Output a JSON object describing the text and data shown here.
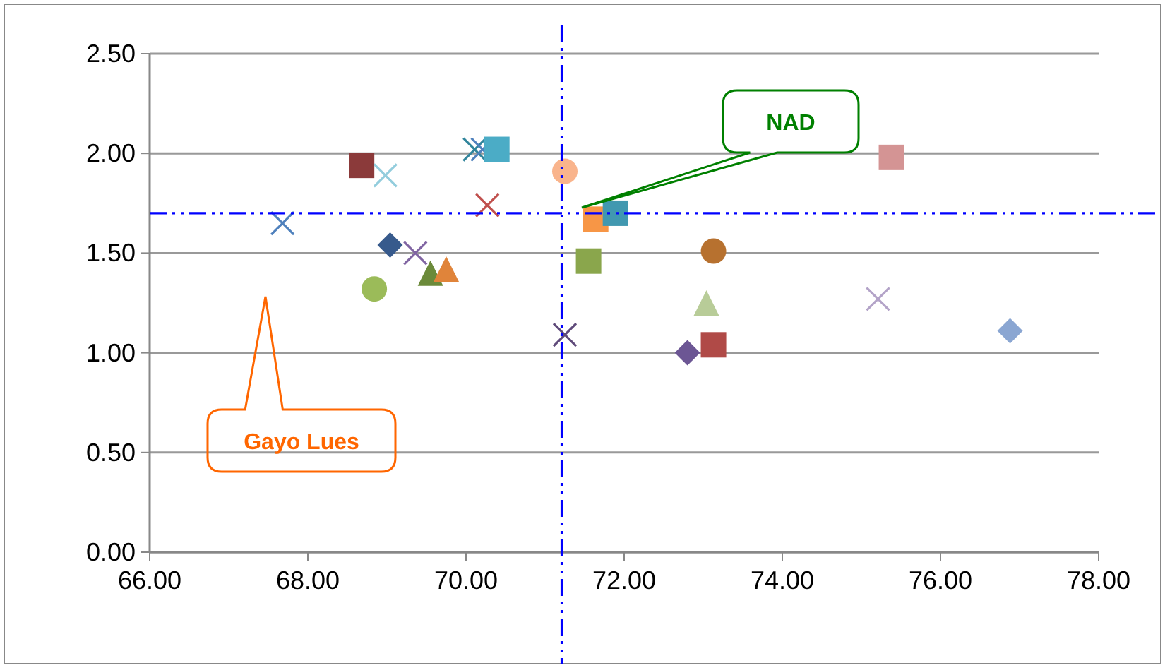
{
  "chart_data": {
    "type": "scatter",
    "xlim": [
      66,
      78
    ],
    "ylim": [
      0,
      2.5
    ],
    "xticks": [
      {
        "value": 66,
        "label": "66.00"
      },
      {
        "value": 68,
        "label": "68.00"
      },
      {
        "value": 70,
        "label": "70.00"
      },
      {
        "value": 72,
        "label": "72.00"
      },
      {
        "value": 74,
        "label": "74.00"
      },
      {
        "value": 76,
        "label": "76.00"
      },
      {
        "value": 78,
        "label": "78.00"
      }
    ],
    "yticks": [
      {
        "value": 0,
        "label": "0.00"
      },
      {
        "value": 0.5,
        "label": "0.50"
      },
      {
        "value": 1,
        "label": "1.00"
      },
      {
        "value": 1.5,
        "label": "1.50"
      },
      {
        "value": 2,
        "label": "2.00"
      },
      {
        "value": 2.5,
        "label": "2.50"
      }
    ],
    "grid": "y",
    "series": [
      {
        "color": "#4f81bd",
        "marker": "cross",
        "x": [
          67.68
        ],
        "values": [
          1.65
        ]
      },
      {
        "color": "#8b3a3a",
        "marker": "square",
        "x": [
          68.68
        ],
        "values": [
          1.94
        ]
      },
      {
        "color": "#93cddd",
        "marker": "cross",
        "x": [
          68.98
        ],
        "values": [
          1.89
        ]
      },
      {
        "color": "#375a8c",
        "marker": "diamond",
        "x": [
          69.04
        ],
        "values": [
          1.54
        ]
      },
      {
        "color": "#8064a2",
        "marker": "cross",
        "x": [
          69.36
        ],
        "values": [
          1.5
        ]
      },
      {
        "color": "#9bbb59",
        "marker": "circle",
        "x": [
          68.84
        ],
        "values": [
          1.32
        ]
      },
      {
        "color": "#6b8a3a",
        "marker": "triangle",
        "x": [
          69.55
        ],
        "values": [
          1.4
        ]
      },
      {
        "color": "#e0843a",
        "marker": "triangle",
        "x": [
          69.75
        ],
        "values": [
          1.42
        ]
      },
      {
        "color": "#31859c",
        "marker": "cross",
        "x": [
          70.11
        ],
        "values": [
          2.02
        ]
      },
      {
        "color": "#4f81bd",
        "marker": "cross",
        "x": [
          70.21
        ],
        "values": [
          2.02
        ]
      },
      {
        "color": "#4bacc6",
        "marker": "square",
        "x": [
          70.39
        ],
        "values": [
          2.02
        ]
      },
      {
        "color": "#c0504d",
        "marker": "cross",
        "x": [
          70.27
        ],
        "values": [
          1.74
        ]
      },
      {
        "color": "#f9b48c",
        "marker": "circle",
        "x": [
          71.25
        ],
        "values": [
          1.91
        ]
      },
      {
        "color": "#5f4a7a",
        "marker": "cross",
        "x": [
          71.25
        ],
        "values": [
          1.09
        ]
      },
      {
        "color": "#f79646",
        "marker": "square",
        "x": [
          71.64
        ],
        "values": [
          1.67
        ]
      },
      {
        "color": "#4198b0",
        "marker": "square",
        "x": [
          71.89
        ],
        "values": [
          1.7
        ]
      },
      {
        "color": "#8aa64c",
        "marker": "square",
        "x": [
          71.55
        ],
        "values": [
          1.46
        ]
      },
      {
        "color": "#b7712f",
        "marker": "circle",
        "x": [
          73.13
        ],
        "values": [
          1.51
        ]
      },
      {
        "color": "#b8cc98",
        "marker": "triangle",
        "x": [
          73.04
        ],
        "values": [
          1.25
        ]
      },
      {
        "color": "#6c5694",
        "marker": "diamond",
        "x": [
          72.8
        ],
        "values": [
          1.0
        ]
      },
      {
        "color": "#b04a47",
        "marker": "square",
        "x": [
          73.13
        ],
        "values": [
          1.04
        ]
      },
      {
        "color": "#d49494",
        "marker": "square",
        "x": [
          75.38
        ],
        "values": [
          1.98
        ]
      },
      {
        "color": "#b3a3c8",
        "marker": "cross",
        "x": [
          75.21
        ],
        "values": [
          1.27
        ]
      },
      {
        "color": "#8aa6d2",
        "marker": "diamond",
        "x": [
          76.88
        ],
        "values": [
          1.11
        ]
      }
    ],
    "ref_lines": [
      {
        "axis": "x",
        "value": 71.21,
        "color": "#0000ff",
        "line_style": "dashdot"
      },
      {
        "axis": "y",
        "value": 1.7,
        "color": "#0000ff",
        "line_style": "dashdot"
      }
    ],
    "annotations": [
      "NAD",
      "Gayo Lues"
    ]
  }
}
